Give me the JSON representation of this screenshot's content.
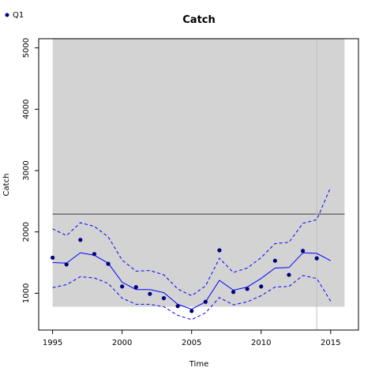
{
  "chart_data": {
    "type": "line",
    "title": "Catch",
    "xlabel": "Time",
    "ylabel": "Catch",
    "xlim": [
      1994,
      2017
    ],
    "ylim": [
      400,
      5150
    ],
    "xticks": [
      1995,
      2000,
      2005,
      2010,
      2015
    ],
    "yticks": [
      1000,
      2000,
      3000,
      4000,
      5000
    ],
    "grid": false,
    "legend": {
      "position": "top-left",
      "entries": [
        {
          "label": "Q1",
          "color": "#000080"
        }
      ]
    },
    "shaded_region": {
      "x": [
        1995,
        2016
      ],
      "y": [
        780,
        5150
      ],
      "color": "#d3d3d3"
    },
    "reference_line_h": {
      "y": 2290,
      "color": "#666666"
    },
    "reference_line_v": {
      "x": 2014,
      "color": "#c0c0c0"
    },
    "x": [
      1995,
      1996,
      1997,
      1998,
      1999,
      2000,
      2001,
      2002,
      2003,
      2004,
      2005,
      2006,
      2007,
      2008,
      2009,
      2010,
      2011,
      2012,
      2013,
      2014,
      2015
    ],
    "series": [
      {
        "name": "Q1",
        "kind": "points",
        "color": "#000080",
        "x": [
          1995,
          1996,
          1997,
          1998,
          1999,
          2000,
          2001,
          2002,
          2003,
          2004,
          2005,
          2006,
          2007,
          2008,
          2009,
          2010,
          2011,
          2012,
          2013,
          2014
        ],
        "values": [
          1580,
          1470,
          1870,
          1640,
          1480,
          1110,
          1100,
          990,
          920,
          790,
          710,
          860,
          1700,
          1020,
          1070,
          1110,
          1530,
          1300,
          1690,
          1570
        ]
      },
      {
        "kind": "line",
        "color": "#0000ff",
        "x": [
          1995,
          1996,
          1997,
          1998,
          1999,
          2000,
          2001,
          2002,
          2003,
          2004,
          2005,
          2006,
          2007,
          2008,
          2009,
          2010,
          2011,
          2012,
          2013,
          2014,
          2015
        ],
        "values": [
          1500,
          1490,
          1660,
          1620,
          1490,
          1180,
          1060,
          1060,
          1010,
          820,
          740,
          860,
          1210,
          1050,
          1100,
          1240,
          1410,
          1420,
          1660,
          1650,
          1530
        ]
      },
      {
        "kind": "dashed",
        "color": "#0000ff",
        "x": [
          1995,
          1996,
          1997,
          1998,
          1999,
          2000,
          2001,
          2002,
          2003,
          2004,
          2005,
          2006,
          2007,
          2008,
          2009,
          2010,
          2011,
          2012,
          2013,
          2014,
          2015
        ],
        "values": [
          2050,
          1940,
          2150,
          2090,
          1920,
          1540,
          1360,
          1370,
          1300,
          1070,
          960,
          1120,
          1570,
          1340,
          1410,
          1580,
          1810,
          1830,
          2140,
          2200,
          2730
        ]
      },
      {
        "kind": "dashed",
        "color": "#0000ff",
        "x": [
          1995,
          1996,
          1997,
          1998,
          1999,
          2000,
          2001,
          2002,
          2003,
          2004,
          2005,
          2006,
          2007,
          2008,
          2009,
          2010,
          2011,
          2012,
          2013,
          2014,
          2015
        ],
        "values": [
          1090,
          1140,
          1270,
          1250,
          1160,
          920,
          820,
          820,
          780,
          640,
          570,
          680,
          930,
          810,
          860,
          960,
          1100,
          1110,
          1290,
          1240,
          870
        ]
      }
    ]
  }
}
